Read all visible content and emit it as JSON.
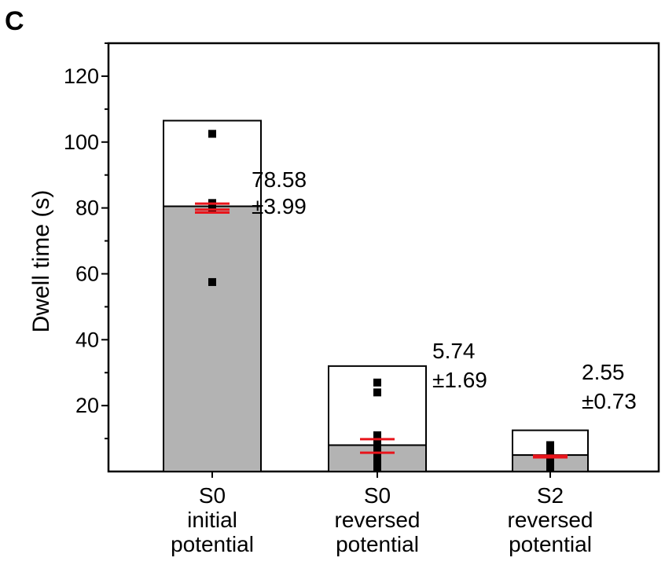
{
  "panel_letter": "C",
  "chart_data": {
    "type": "bar",
    "ylabel": "Dwell time (s)",
    "ylim": [
      0,
      130
    ],
    "yticks": [
      "20",
      "40",
      "60",
      "80",
      "100",
      "120"
    ],
    "grid": false,
    "categories": [
      {
        "lines": [
          "S0",
          "initial",
          "potential"
        ]
      },
      {
        "lines": [
          "S0",
          "reversed",
          "potential"
        ]
      },
      {
        "lines": [
          "S2",
          "reversed",
          "potential"
        ]
      }
    ],
    "bars": [
      {
        "box_upper": 106.5,
        "box_lower": 80.5,
        "points": [
          102.5,
          81.5,
          80,
          57.5
        ],
        "mean_error_lines": [
          81.3,
          79.5,
          78.6
        ],
        "mean": "78.58",
        "error": "±3.99"
      },
      {
        "box_upper": 32,
        "box_lower": 8,
        "points": [
          27,
          24,
          11,
          9,
          7,
          5,
          3,
          1
        ],
        "mean_error_lines": [
          9.8,
          5.7
        ],
        "mean": "5.74",
        "error": "±1.69"
      },
      {
        "box_upper": 12.5,
        "box_lower": 5,
        "points": [
          8,
          6,
          4,
          2,
          1
        ],
        "mean_error_lines": [
          4.8,
          4.3
        ],
        "mean": "2.55",
        "error": "±0.73"
      }
    ],
    "colors": {
      "fill_lower": "#b3b3b3",
      "fill_upper": "#ffffff",
      "points": "#000000",
      "error": "#e8141b"
    }
  }
}
